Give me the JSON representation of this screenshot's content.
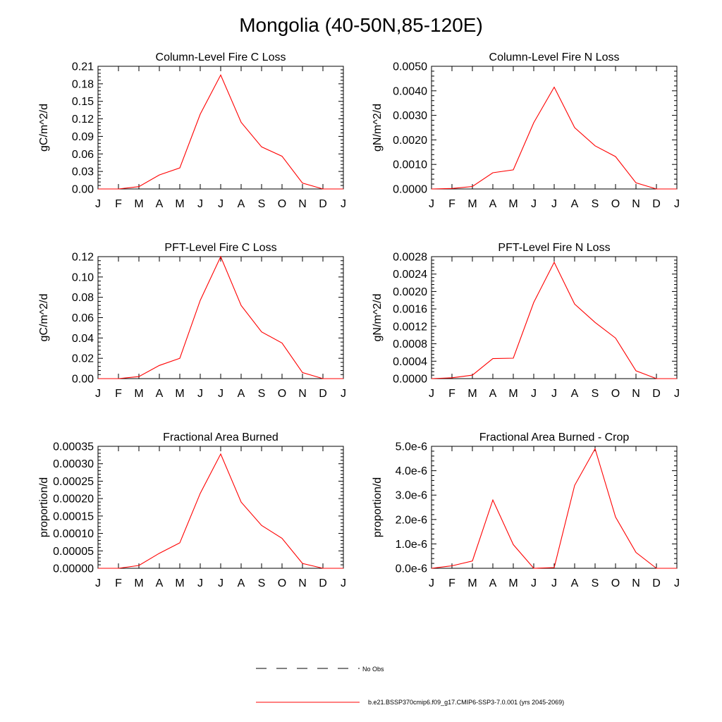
{
  "figure": {
    "title": "Mongolia (40-50N,85-120E)",
    "legend": [
      {
        "label": "No Obs",
        "style": "dashed",
        "color": "#000000"
      },
      {
        "label": "b.e21.BSSP370cmip6.f09_g17.CMIP6-SSP3-7.0.001 (yrs 2045-2069)",
        "style": "solid",
        "color": "#ff0000"
      }
    ]
  },
  "chart_data": [
    {
      "type": "line",
      "title": "Column-Level Fire C Loss",
      "ylabel": "gC/m^2/d",
      "x": [
        "J",
        "F",
        "M",
        "A",
        "M",
        "J",
        "J",
        "A",
        "S",
        "O",
        "N",
        "D",
        "J"
      ],
      "ylim": [
        0,
        0.21
      ],
      "yticks": [
        "0.00",
        "0.03",
        "0.06",
        "0.09",
        "0.12",
        "0.15",
        "0.18",
        "0.21"
      ],
      "series": [
        {
          "color": "#ff0000",
          "values": [
            0.0,
            0.0,
            0.004,
            0.024,
            0.036,
            0.128,
            0.195,
            0.114,
            0.072,
            0.056,
            0.01,
            0.0,
            0.0
          ]
        }
      ]
    },
    {
      "type": "line",
      "title": "Column-Level Fire N Loss",
      "ylabel": "gN/m^2/d",
      "x": [
        "J",
        "F",
        "M",
        "A",
        "M",
        "J",
        "J",
        "A",
        "S",
        "O",
        "N",
        "D",
        "J"
      ],
      "ylim": [
        0,
        0.005
      ],
      "yticks": [
        "0.0000",
        "0.0010",
        "0.0020",
        "0.0030",
        "0.0040",
        "0.0050"
      ],
      "series": [
        {
          "color": "#ff0000",
          "values": [
            0.0,
            2e-05,
            0.0001,
            0.00066,
            0.00078,
            0.0027,
            0.00415,
            0.0025,
            0.00176,
            0.00132,
            0.00025,
            0.0,
            0.0
          ]
        }
      ]
    },
    {
      "type": "line",
      "title": "PFT-Level Fire C Loss",
      "ylabel": "gC/m^2/d",
      "x": [
        "J",
        "F",
        "M",
        "A",
        "M",
        "J",
        "J",
        "A",
        "S",
        "O",
        "N",
        "D",
        "J"
      ],
      "ylim": [
        0,
        0.12
      ],
      "yticks": [
        "0.00",
        "0.02",
        "0.04",
        "0.06",
        "0.08",
        "0.10",
        "0.12"
      ],
      "series": [
        {
          "color": "#ff0000",
          "values": [
            0.0,
            0.0,
            0.002,
            0.013,
            0.02,
            0.077,
            0.12,
            0.072,
            0.046,
            0.035,
            0.006,
            0.0,
            0.0
          ]
        }
      ]
    },
    {
      "type": "line",
      "title": "PFT-Level Fire N Loss",
      "ylabel": "gN/m^2/d",
      "x": [
        "J",
        "F",
        "M",
        "A",
        "M",
        "J",
        "J",
        "A",
        "S",
        "O",
        "N",
        "D",
        "J"
      ],
      "ylim": [
        0,
        0.0028
      ],
      "yticks": [
        "0.0000",
        "0.0004",
        "0.0008",
        "0.0012",
        "0.0016",
        "0.0020",
        "0.0024",
        "0.0028"
      ],
      "series": [
        {
          "color": "#ff0000",
          "values": [
            0.0,
            2e-05,
            8e-05,
            0.00046,
            0.00047,
            0.00175,
            0.00267,
            0.00171,
            0.00129,
            0.00093,
            0.00018,
            0.0,
            0.0
          ]
        }
      ]
    },
    {
      "type": "line",
      "title": "Fractional Area Burned",
      "ylabel": "proportion/d",
      "x": [
        "J",
        "F",
        "M",
        "A",
        "M",
        "J",
        "J",
        "A",
        "S",
        "O",
        "N",
        "D",
        "J"
      ],
      "ylim": [
        0,
        0.00035
      ],
      "yticks": [
        "0.00000",
        "0.00005",
        "0.00010",
        "0.00015",
        "0.00020",
        "0.00025",
        "0.00030",
        "0.00035"
      ],
      "series": [
        {
          "color": "#ff0000",
          "values": [
            0.0,
            0.0,
            8e-06,
            4.3e-05,
            7.3e-05,
            0.000215,
            0.000328,
            0.00019,
            0.000123,
            8.6e-05,
            1.4e-05,
            0.0,
            0.0
          ]
        }
      ]
    },
    {
      "type": "line",
      "title": "Fractional Area Burned - Crop",
      "ylabel": "proportion/d",
      "x": [
        "J",
        "F",
        "M",
        "A",
        "M",
        "J",
        "J",
        "A",
        "S",
        "O",
        "N",
        "D",
        "J"
      ],
      "ylim": [
        0,
        5e-06
      ],
      "yticks": [
        "0.0e-6",
        "1.0e-6",
        "2.0e-6",
        "3.0e-6",
        "4.0e-6",
        "5.0e-6"
      ],
      "series": [
        {
          "color": "#ff0000",
          "values": [
            0.0,
            1e-07,
            3e-07,
            2.8e-06,
            9.7e-07,
            0.0,
            3e-08,
            3.4e-06,
            4.9e-06,
            2.1e-06,
            6.5e-07,
            0.0,
            0.0
          ]
        }
      ]
    }
  ]
}
